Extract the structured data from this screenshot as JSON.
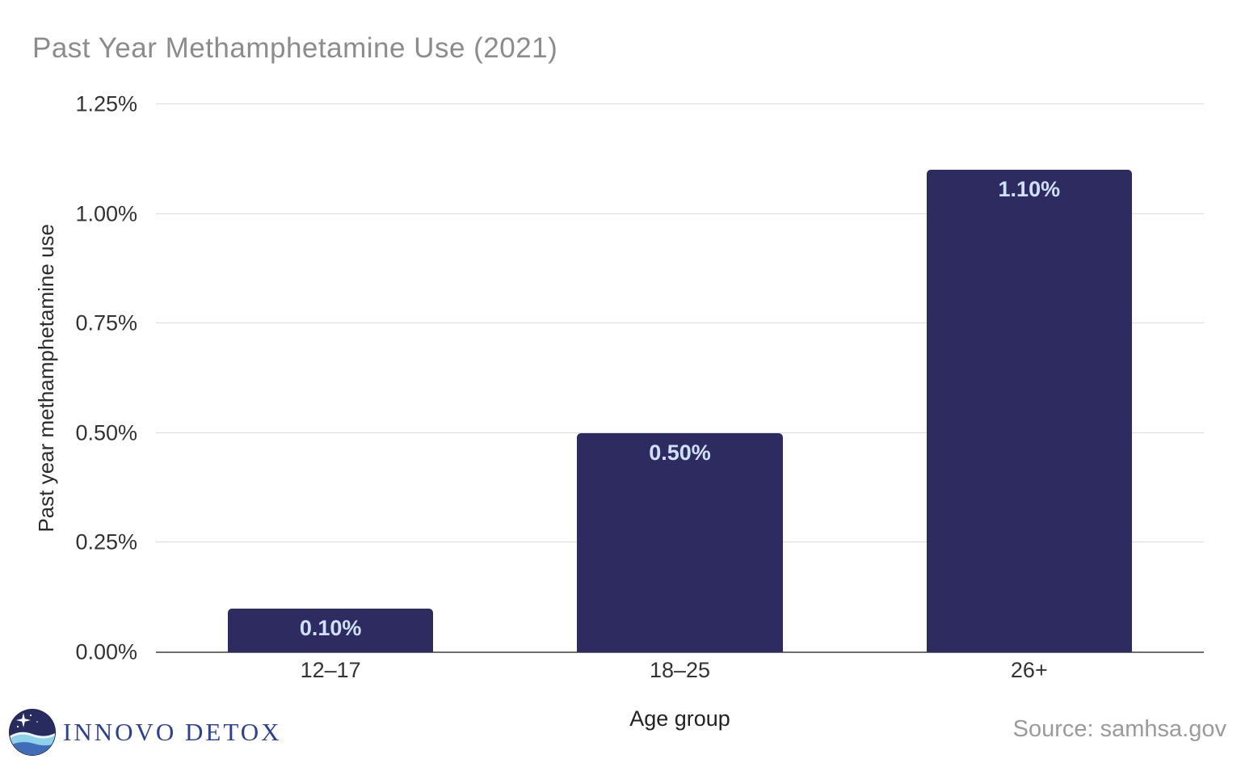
{
  "title": "Past Year Methamphetamine Use (2021)",
  "chart_data": {
    "type": "bar",
    "title": "Past Year Methamphetamine Use (2021)",
    "categories": [
      "12–17",
      "18–25",
      "26+"
    ],
    "values": [
      0.1,
      0.5,
      1.1
    ],
    "value_labels": [
      "0.10%",
      "0.50%",
      "1.10%"
    ],
    "xlabel": "Age group",
    "ylabel": "Past year methamphetamine use",
    "ylim": [
      0,
      1.25
    ],
    "yticks": [
      0,
      0.25,
      0.5,
      0.75,
      1.0,
      1.25
    ],
    "ytick_labels": [
      "0.00%",
      "0.25%",
      "0.50%",
      "0.75%",
      "1.00%",
      "1.25%"
    ],
    "grid": true,
    "legend": false,
    "bar_color": "#2e2b60",
    "bar_label_color": "#cfe0fa"
  },
  "footer": {
    "logo_text": "INNOVO DETOX",
    "source_text": "Source: samhsa.gov"
  },
  "colors": {
    "title": "#8c8c8c",
    "axis_text": "#333333",
    "gridline": "#dcdcdc",
    "axis_line": "#6e6e6e",
    "source_text": "#9b9b9b",
    "logo_text": "#2e4191"
  }
}
